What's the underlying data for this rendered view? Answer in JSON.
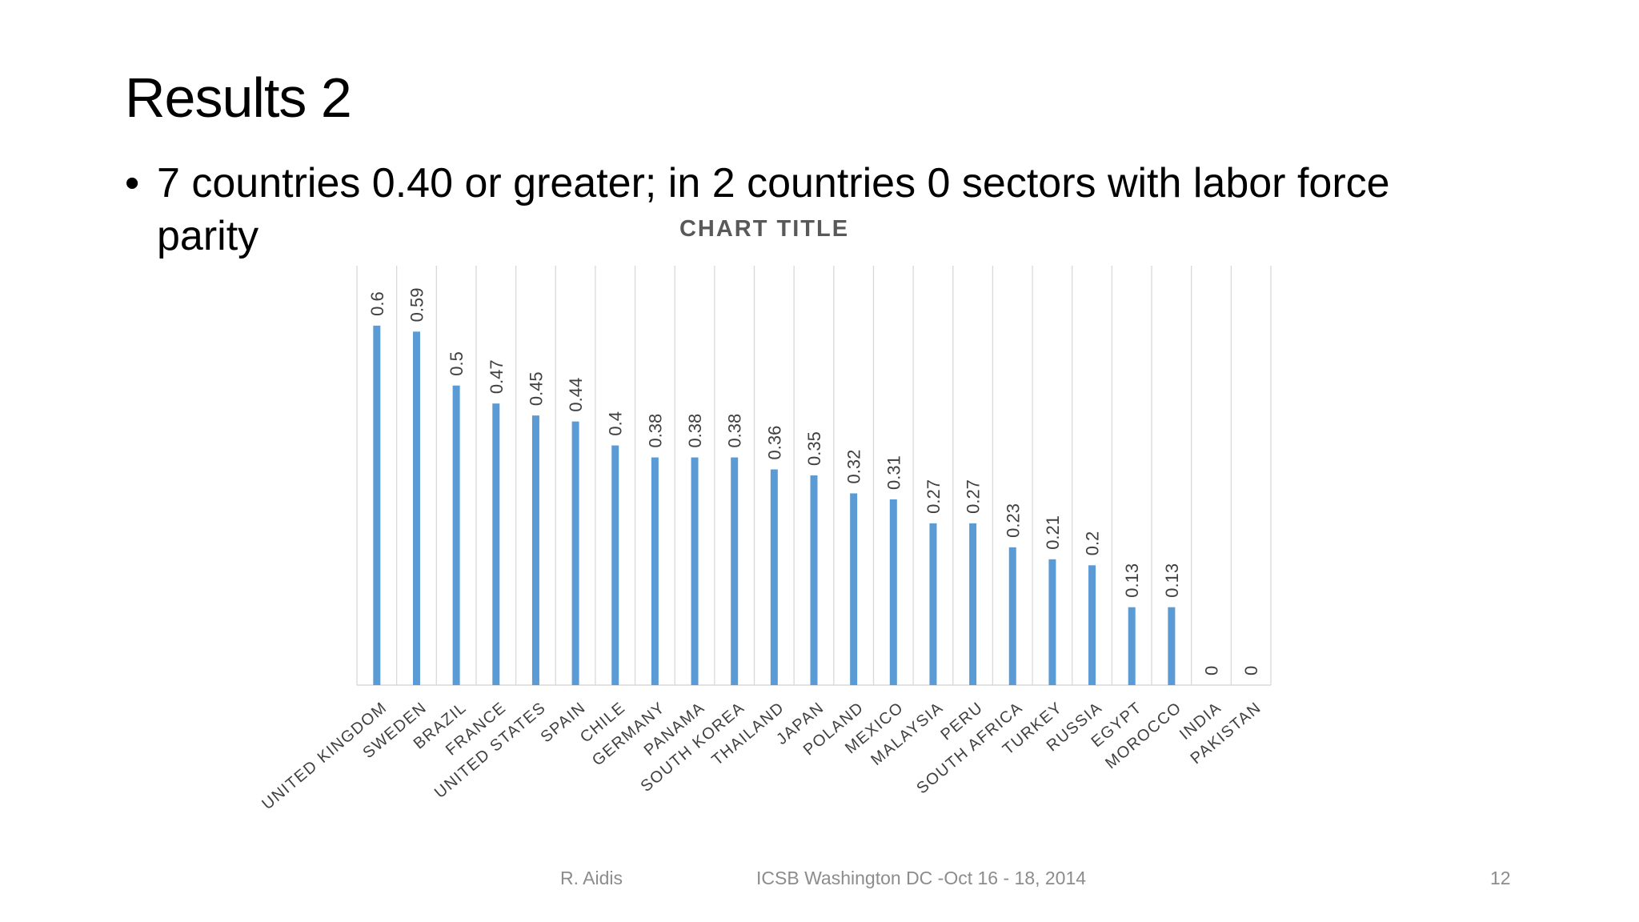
{
  "slide": {
    "title": "Results 2",
    "bullet_marker": "•",
    "bullet_text": "7 countries 0.40 or greater; in 2 countries 0 sectors with labor force parity"
  },
  "footer": {
    "author": "R. Aidis",
    "event": "ICSB Washington DC -Oct 16 - 18, 2014",
    "page_number": "12"
  },
  "chart_data": {
    "type": "bar",
    "title": "CHART TITLE",
    "xlabel": "",
    "ylabel": "",
    "ylim": [
      0,
      0.7
    ],
    "grid": "vertical",
    "bar_color": "#5b9bd5",
    "categories": [
      "UNITED KINGDOM",
      "SWEDEN",
      "BRAZIL",
      "FRANCE",
      "UNITED STATES",
      "SPAIN",
      "CHILE",
      "GERMANY",
      "PANAMA",
      "SOUTH KOREA",
      "THAILAND",
      "JAPAN",
      "POLAND",
      "MEXICO",
      "MALAYSIA",
      "PERU",
      "SOUTH AFRICA",
      "TURKEY",
      "RUSSIA",
      "EGYPT",
      "MOROCCO",
      "INDIA",
      "PAKISTAN"
    ],
    "values": [
      0.6,
      0.59,
      0.5,
      0.47,
      0.45,
      0.44,
      0.4,
      0.38,
      0.38,
      0.38,
      0.36,
      0.35,
      0.32,
      0.31,
      0.27,
      0.27,
      0.23,
      0.21,
      0.2,
      0.13,
      0.13,
      0,
      0
    ],
    "data_labels": [
      "0.6",
      "0.59",
      "0.5",
      "0.47",
      "0.45",
      "0.44",
      "0.4",
      "0.38",
      "0.38",
      "0.38",
      "0.36",
      "0.35",
      "0.32",
      "0.31",
      "0.27",
      "0.27",
      "0.23",
      "0.21",
      "0.2",
      "0.13",
      "0.13",
      "0",
      "0"
    ]
  }
}
